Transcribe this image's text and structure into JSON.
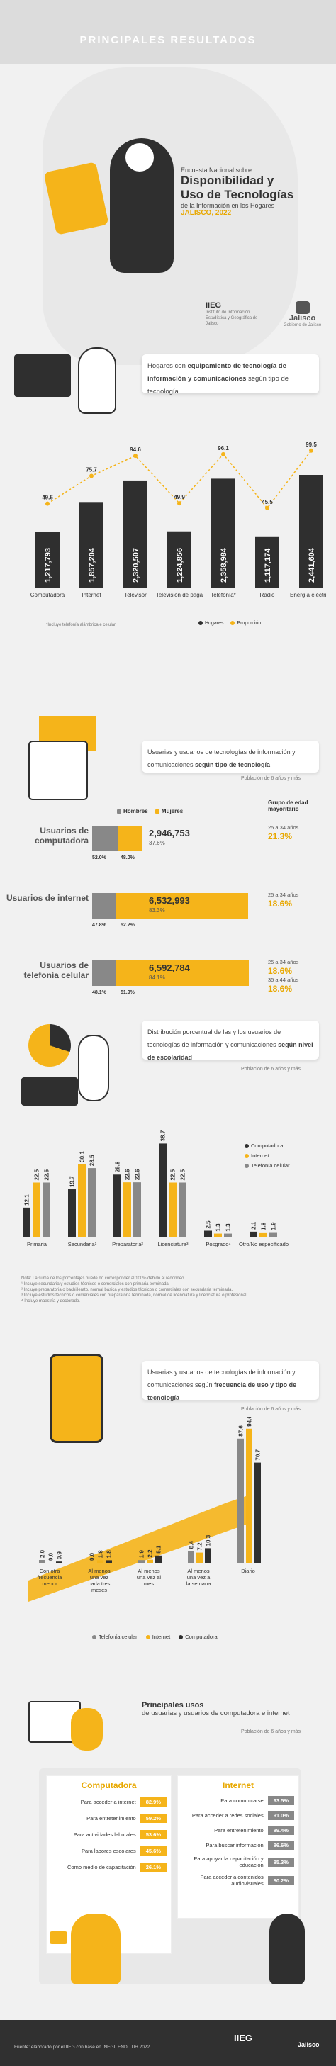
{
  "header": {
    "title": "PRINCIPALES RESULTADOS"
  },
  "intro": {
    "line1": "Encuesta Nacional sobre",
    "line2": "Disponibilidad y",
    "line3": "Uso de Tecnologías",
    "line4": "de la Información en los Hogares",
    "line5": "JALISCO, 2022",
    "logo1": "IIEG",
    "logo1_sub": "Instituto de Información Estadística y Geográfica de Jalisco",
    "logo2": "Jalisco",
    "logo2_sub": "Gobierno de Jalisco"
  },
  "s1": {
    "title_a": "Hogares con ",
    "title_b": "equipamiento de tecnología de información y comunicaciones",
    "title_c": " según tipo de tecnología",
    "note": "*Incluye telefonía alámbrica e celular.",
    "legend_a": "Hogares",
    "legend_b": "Proporción"
  },
  "chart_data": [
    {
      "type": "bar",
      "categories": [
        "Computadora",
        "Internet",
        "Televisor",
        "Televisión de paga",
        "Telefonía*",
        "Radio",
        "Energía eléctrica"
      ],
      "series": [
        {
          "name": "Hogares",
          "values": [
            1217793,
            1857204,
            2320507,
            1224856,
            2358984,
            1117174,
            2441604
          ]
        },
        {
          "name": "Proporción",
          "values": [
            49.6,
            75.7,
            94.6,
            49.9,
            96.1,
            45.5,
            99.5
          ]
        }
      ],
      "value_labels": [
        "1,217,793",
        "1,857,204",
        "2,320,507",
        "1,224,856",
        "2,358,984",
        "1,117,174",
        "2,441,604"
      ]
    },
    {
      "type": "bar",
      "categories": [
        "Primaria",
        "Secundaria",
        "Preparatoria",
        "Licenciatura",
        "Posgrado",
        "Otro/No especificado"
      ],
      "series": [
        {
          "name": "Computadora",
          "values": [
            12.1,
            19.7,
            25.8,
            38.7,
            2.5,
            2.1
          ]
        },
        {
          "name": "Internet",
          "values": [
            22.5,
            30.1,
            22.6,
            22.5,
            1.3,
            1.8
          ]
        },
        {
          "name": "Telefonía celular",
          "values": [
            22.5,
            28.5,
            22.6,
            22.5,
            1.3,
            1.9
          ]
        }
      ]
    },
    {
      "type": "bar",
      "categories": [
        "Con otra frecuencia menor",
        "Al menos una vez cada tres meses",
        "Al menos una vez al mes",
        "Al menos una vez a la semana",
        "Diario"
      ],
      "series": [
        {
          "name": "Telefonía celular",
          "values": [
            2.0,
            0.0,
            1.9,
            8.4,
            87.6
          ]
        },
        {
          "name": "Internet",
          "values": [
            0.0,
            1.8,
            2.2,
            7.2,
            94.6
          ]
        },
        {
          "name": "Computadora",
          "values": [
            0.9,
            1.8,
            5.1,
            10.3,
            70.7
          ]
        }
      ]
    }
  ],
  "s2": {
    "title_a": "Usuarias y usuarios de tecnologías de información y comunicaciones ",
    "title_b": "según tipo de tecnología",
    "pop": "Población de 6 años y más",
    "h": "Hombres",
    "m": "Mujeres",
    "group": "Grupo de edad mayoritario",
    "rows": [
      {
        "name": "Usuarios de computadora",
        "h": "52.0%",
        "m": "48.0%",
        "total": "2,946,753",
        "pct": "37.6%",
        "age": "25 a 34 años",
        "agep": "21.3%",
        "fill": 0.376
      },
      {
        "name": "Usuarios de internet",
        "h": "47.8%",
        "m": "52.2%",
        "total": "6,532,993",
        "pct": "83.3%",
        "age": "25 a 34 años",
        "agep": "18.6%",
        "fill": 0.833
      },
      {
        "name": "Usuarios de telefonía celular",
        "h": "48.1%",
        "m": "51.9%",
        "total": "6,592,784",
        "pct": "84.1%",
        "age": "25 a 34 años",
        "agep": "18.6%",
        "age2": "35 a 44 años",
        "agep2": "18.6%",
        "fill": 0.841
      }
    ]
  },
  "s3": {
    "title_a": "Distribución porcentual de las y los usuarios de tecnologías de información y comunicaciones ",
    "title_b": "según nivel de escolaridad",
    "pop": "Población de 6 años y más",
    "legend": [
      "Computadora",
      "Internet",
      "Telefonía celular"
    ],
    "notes": [
      "Nota: La suma de los porcentajes puede no corresponder al 100% debido al redondeo.",
      "¹ Incluye secundaria y estudios técnicos o comerciales con primaria terminada.",
      "² Incluye preparatoria o bachillerato, normal básica y estudios técnicos o comerciales con secundaria terminada.",
      "³ Incluye estudios técnicos o comerciales con preparatoria terminada, normal de licenciatura y licenciatura o profesional.",
      "⁴ Incluye maestría y doctorado."
    ],
    "labels": [
      "Primaria",
      "Secundaria¹",
      "Preparatoria²",
      "Licenciatura³",
      "Posgrado⁴",
      "Otro/No especificado"
    ]
  },
  "s4": {
    "title_a": "Usuarias y usuarios de tecnologías de información y comunicaciones según ",
    "title_b": "frecuencia de uso y tipo de tecnología",
    "pop": "Población de 6 años y más",
    "legend": [
      "Telefonía celular",
      "Internet",
      "Computadora"
    ]
  },
  "s5": {
    "title_a": "Principales usos",
    "title_b": "de usuarias y usuarios de computadora e internet",
    "pop": "Población de 6 años y más",
    "comp_title": "Computadora",
    "net_title": "Internet",
    "comp": [
      {
        "l": "Para acceder a internet",
        "v": "82.9%"
      },
      {
        "l": "Para entretenimiento",
        "v": "59.2%"
      },
      {
        "l": "Para actividades laborales",
        "v": "53.6%"
      },
      {
        "l": "Para labores escolares",
        "v": "45.6%"
      },
      {
        "l": "Como medio de capacitación",
        "v": "26.1%"
      }
    ],
    "net": [
      {
        "l": "Para comunicarse",
        "v": "93.5%"
      },
      {
        "l": "Para acceder a redes sociales",
        "v": "91.0%"
      },
      {
        "l": "Para entretenimiento",
        "v": "89.4%"
      },
      {
        "l": "Para buscar información",
        "v": "86.6%"
      },
      {
        "l": "Para apoyar la capacitación y educación",
        "v": "85.3%"
      },
      {
        "l": "Para acceder a contenidos audiovisuales",
        "v": "80.2%"
      }
    ]
  },
  "footer": {
    "source": "Fuente: elaborado por el IIEG con base en INEGI, ENDUTIH 2022.",
    "logo1": "IIEG",
    "logo2": "Jalisco"
  },
  "colors": {
    "yellow": "#f5b41a",
    "dark": "#2f2f2f",
    "gray": "#888888"
  }
}
